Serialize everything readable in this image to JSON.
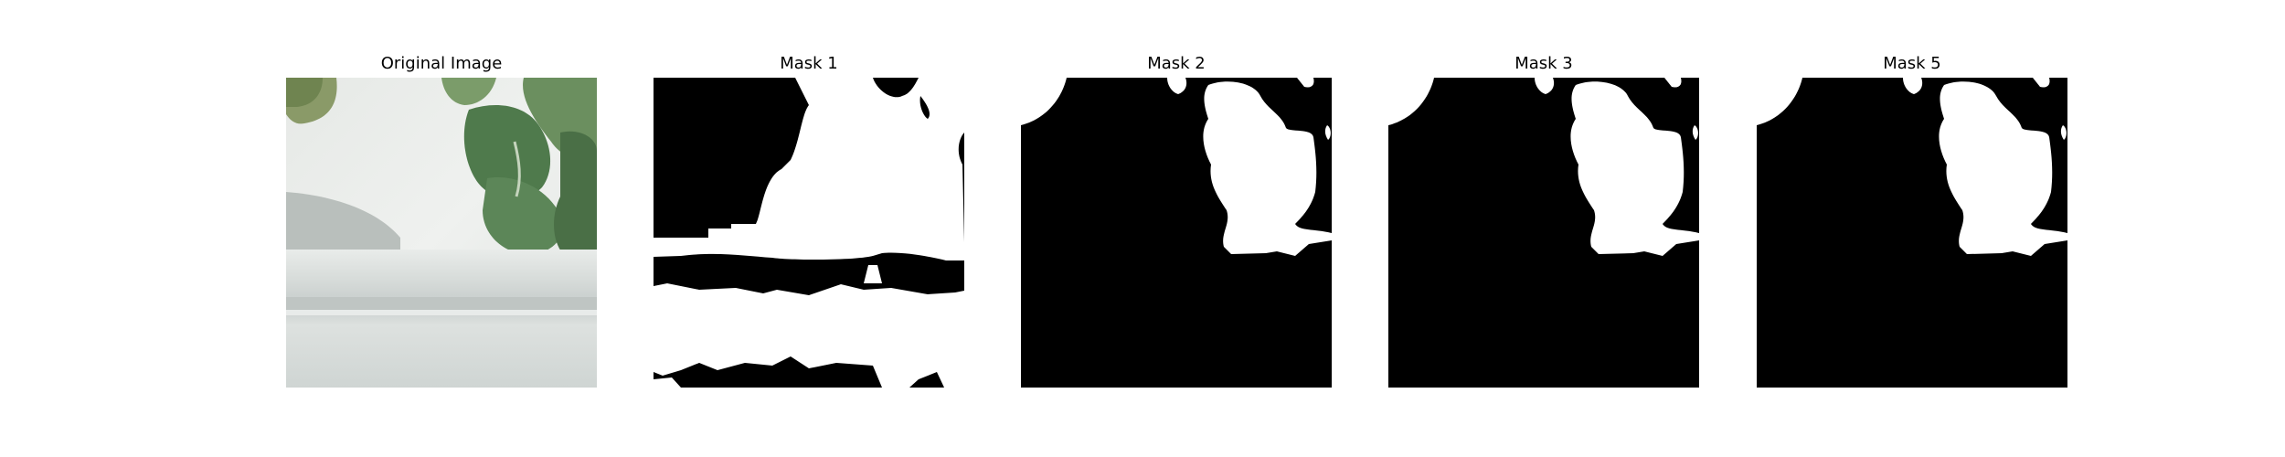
{
  "panels": [
    {
      "title": "Original Image",
      "kind": "photo"
    },
    {
      "title": "Mask 1",
      "kind": "mask1"
    },
    {
      "title": "Mask 2",
      "kind": "mask2"
    },
    {
      "title": "Mask 3",
      "kind": "mask3"
    },
    {
      "title": "Mask 5",
      "kind": "mask5"
    }
  ],
  "colors": {
    "mask_fg": "#ffffff",
    "mask_bg": "#000000"
  }
}
